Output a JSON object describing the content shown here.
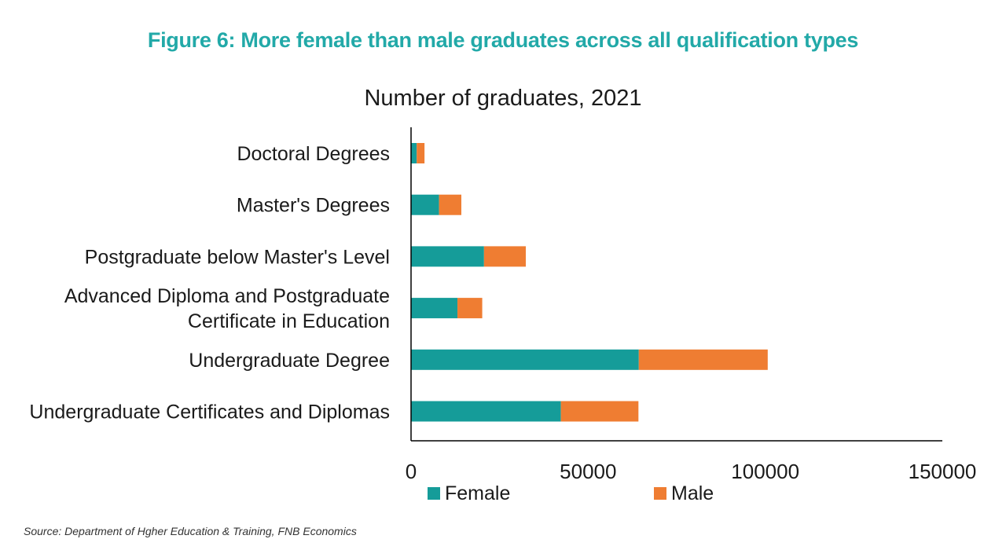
{
  "figure_title": "Figure 6: More female than male graduates across all qualification types",
  "source": "Source: Department of Hgher Education & Training, FNB Economics",
  "colors": {
    "title": "#22a9a8",
    "female": "#159c99",
    "male": "#ef7d32",
    "axis": "#000000",
    "text": "#1a1a1a"
  },
  "chart_data": {
    "type": "bar",
    "orientation": "horizontal",
    "stacked": true,
    "title": "Number of graduates, 2021",
    "categories": [
      [
        "Doctoral Degrees"
      ],
      [
        "Master's Degrees"
      ],
      [
        "Postgraduate below Master's Level"
      ],
      [
        "Advanced Diploma and Postgraduate",
        "Certificate in Education"
      ],
      [
        "Undergraduate Degree"
      ],
      [
        "Undergraduate Certificates and Diplomas"
      ]
    ],
    "series": [
      {
        "name": "Female",
        "color": "#159c99",
        "values": [
          1600,
          7900,
          20600,
          13100,
          64300,
          42300
        ]
      },
      {
        "name": "Male",
        "color": "#ef7d32",
        "values": [
          2200,
          6300,
          11800,
          7000,
          36400,
          21900
        ]
      }
    ],
    "xlim": [
      0,
      150000
    ],
    "xticks": [
      0,
      50000,
      100000,
      150000
    ],
    "grid": false,
    "legend_position": "bottom"
  }
}
